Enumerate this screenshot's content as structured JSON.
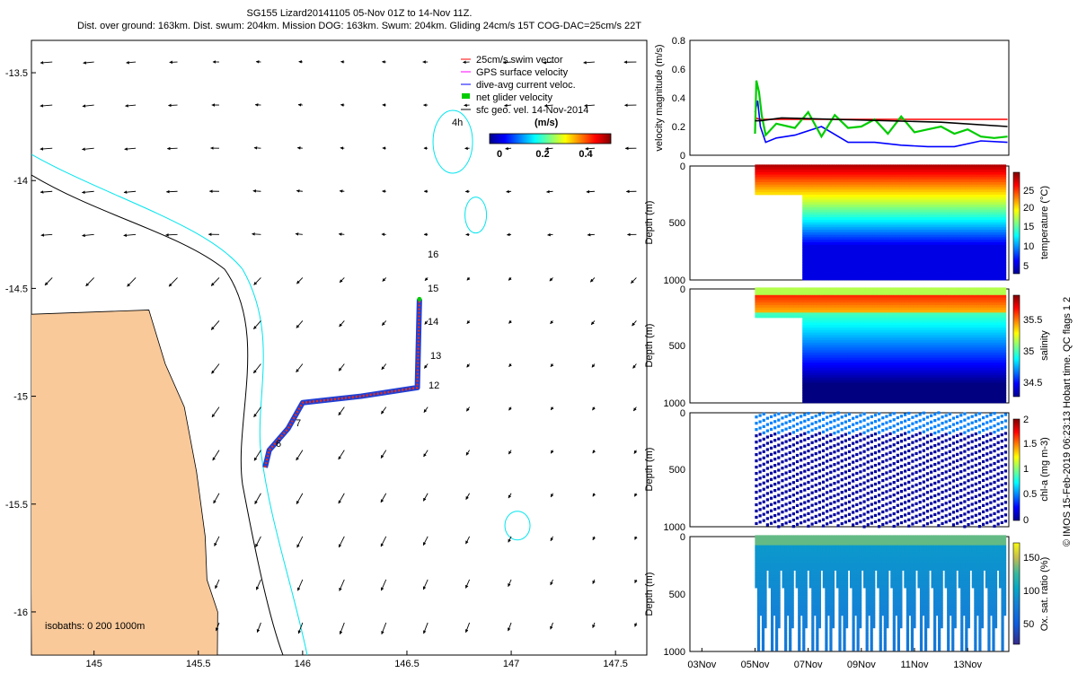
{
  "header": {
    "title": "SG155 Lizard20141105 05-Nov 01Z to 14-Nov 11Z.",
    "subtitle": "Dist. over ground: 163km. Dist. swum: 204km. Mission DOG: 163km. Swum: 204km. Gliding 24cm/s 15T COG-DAC=25cm/s 22T"
  },
  "map": {
    "legend": [
      {
        "label": "25cm/s swim vector",
        "color": "#ff0000"
      },
      {
        "label": "GPS surface velocity",
        "color": "#ff00ff"
      },
      {
        "label": "dive-avg current veloc.",
        "color": "#0000ff"
      },
      {
        "label": "net glider velocity",
        "color": "#00cc00"
      },
      {
        "label": "sfc geo. vel. 14-Nov-2014",
        "color": "#000000"
      }
    ],
    "colorbar_title": "(m/s)",
    "colorbar_ticks": [
      "0",
      "0.2",
      "0.4"
    ],
    "vector_scale_label": "4h",
    "isobaths_label": "isobaths: 0   200  1000m",
    "day_labels": [
      "6",
      "7",
      "12",
      "13",
      "14",
      "15",
      "16"
    ],
    "xticks": [
      "145",
      "145.5",
      "146",
      "146.5",
      "147",
      "147.5"
    ],
    "yticks": [
      "-13.5",
      "-14",
      "-14.5",
      "-15",
      "-15.5",
      "-16"
    ]
  },
  "panels": {
    "velocity_ylabel": "velocity magnitude (m/s)",
    "velocity_yticks": [
      "0.8",
      "0.6",
      "0.4",
      "0.2",
      "0"
    ],
    "depth_ylabel": "Depth (m)",
    "depth_ticks": [
      "0",
      "500",
      "1000"
    ],
    "date_ticks": [
      "03Nov",
      "05Nov",
      "07Nov",
      "09Nov",
      "11Nov",
      "13Nov"
    ],
    "colorbars": [
      {
        "label": "temperature (°C)",
        "ticks": [
          "25",
          "20",
          "15",
          "10",
          "5"
        ]
      },
      {
        "label": "salinity",
        "ticks": [
          "35.5",
          "35",
          "34.5"
        ]
      },
      {
        "label": "chl-a (mg m-3)",
        "ticks": [
          "2",
          "1.5",
          "1",
          "0.5",
          "0"
        ]
      },
      {
        "label": "Ox. sat. ratio (%)",
        "ticks": [
          "150",
          "100",
          "50"
        ]
      }
    ],
    "side_text": "© IMOS 15-Feb-2019 06:23:13 Hobart time. QC flags 1  2"
  },
  "chart_data": [
    {
      "type": "scatter",
      "title": "SG155 Lizard20141105 05-Nov 01Z to 14-Nov 11Z.",
      "xlim": [
        144.7,
        147.65
      ],
      "ylim": [
        -16.2,
        -13.35
      ],
      "glider_track": {
        "lon": [
          145.82,
          145.84,
          145.93,
          146.0,
          146.28,
          146.55,
          146.56
        ],
        "lat": [
          -15.33,
          -15.25,
          -15.15,
          -15.03,
          -15.0,
          -14.96,
          -14.55
        ]
      },
      "coast_outline": {
        "lon": [
          144.7,
          145.25,
          145.35,
          145.42,
          145.5,
          145.52,
          145.55,
          145.58,
          145.6
        ],
        "lat": [
          -14.62,
          -14.6,
          -14.85,
          -15.05,
          -15.35,
          -15.65,
          -15.85,
          -16.0,
          -16.2
        ]
      },
      "reefs": [
        {
          "lon": 146.72,
          "lat": -13.82
        },
        {
          "lon": 146.83,
          "lat": -14.16
        },
        {
          "lon": 147.03,
          "lat": -15.6
        }
      ]
    },
    {
      "type": "line",
      "ylabel": "velocity magnitude (m/s)",
      "ylim": [
        0,
        0.8
      ],
      "series": [
        {
          "color": "#ff0000",
          "x": [
            5.0,
            5.2,
            14.5
          ],
          "y": [
            0.26,
            0.25,
            0.25
          ]
        },
        {
          "color": "#0000ff",
          "x": [
            5.0,
            5.1,
            5.2,
            5.4,
            5.8,
            6.5,
            7.5,
            8.5,
            9.5,
            10.5,
            11.5,
            12.5,
            13.5,
            14.5
          ],
          "y": [
            0.3,
            0.38,
            0.2,
            0.09,
            0.12,
            0.14,
            0.2,
            0.09,
            0.09,
            0.07,
            0.06,
            0.06,
            0.1,
            0.09
          ]
        },
        {
          "color": "#00cc00",
          "x": [
            5.0,
            5.05,
            5.15,
            5.25,
            5.4,
            5.8,
            6.5,
            7.0,
            7.5,
            8.0,
            8.5,
            9.0,
            9.5,
            10.0,
            10.5,
            11.0,
            11.5,
            12.0,
            12.5,
            13.0,
            13.5,
            14.0,
            14.5
          ],
          "y": [
            0.15,
            0.52,
            0.44,
            0.28,
            0.14,
            0.22,
            0.19,
            0.3,
            0.13,
            0.28,
            0.19,
            0.2,
            0.25,
            0.15,
            0.27,
            0.16,
            0.18,
            0.2,
            0.15,
            0.18,
            0.13,
            0.12,
            0.13
          ]
        },
        {
          "color": "#000000",
          "x": [
            5.0,
            5.2,
            6.0,
            8.0,
            10.0,
            12.0,
            14.5
          ],
          "y": [
            0.24,
            0.24,
            0.26,
            0.25,
            0.24,
            0.23,
            0.2
          ]
        }
      ]
    },
    {
      "type": "scatter",
      "variable": "temperature (°C)",
      "ylabel": "Depth (m)",
      "ylim": [
        1000,
        0
      ],
      "clim": [
        3,
        29
      ]
    },
    {
      "type": "scatter",
      "variable": "salinity",
      "ylabel": "Depth (m)",
      "ylim": [
        1000,
        0
      ],
      "clim": [
        34.3,
        35.9
      ]
    },
    {
      "type": "scatter",
      "variable": "chl-a (mg m-3)",
      "ylabel": "Depth (m)",
      "ylim": [
        1000,
        0
      ],
      "clim": [
        0,
        2
      ]
    },
    {
      "type": "scatter",
      "variable": "Ox. sat. ratio (%)",
      "ylabel": "Depth (m)",
      "ylim": [
        1000,
        0
      ],
      "clim": [
        20,
        175
      ]
    }
  ]
}
